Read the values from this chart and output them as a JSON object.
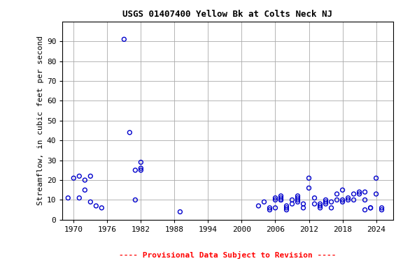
{
  "title": "USGS 01407400 Yellow Bk at Colts Neck NJ",
  "ylabel": "Streamflow, in cubic feet per second",
  "xlabel_note": "---- Provisional Data Subject to Revision ----",
  "xlim": [
    1968,
    2027
  ],
  "ylim": [
    0,
    100
  ],
  "yticks": [
    0,
    10,
    20,
    30,
    40,
    50,
    60,
    70,
    80,
    90
  ],
  "xticks": [
    1970,
    1976,
    1982,
    1988,
    1994,
    2000,
    2006,
    2012,
    2018,
    2024
  ],
  "scatter_color": "#0000CC",
  "background_color": "#ffffff",
  "grid_color": "#aaaaaa",
  "x": [
    1969,
    1970,
    1971,
    1971,
    1972,
    1972,
    1973,
    1973,
    1974,
    1975,
    1979,
    1980,
    1981,
    1981,
    1982,
    1982,
    1982,
    1989,
    2003,
    2004,
    2005,
    2005,
    2006,
    2006,
    2006,
    2007,
    2007,
    2007,
    2007,
    2008,
    2008,
    2008,
    2009,
    2009,
    2010,
    2010,
    2010,
    2010,
    2011,
    2011,
    2012,
    2012,
    2013,
    2013,
    2014,
    2014,
    2014,
    2015,
    2015,
    2015,
    2016,
    2016,
    2017,
    2017,
    2018,
    2018,
    2018,
    2019,
    2019,
    2020,
    2020,
    2021,
    2021,
    2022,
    2022,
    2022,
    2023,
    2023,
    2024,
    2024,
    2025,
    2025
  ],
  "y": [
    11,
    21,
    11,
    22,
    15,
    20,
    9,
    22,
    7,
    6,
    91,
    44,
    10,
    25,
    29,
    25,
    26,
    4,
    7,
    9,
    6,
    5,
    10,
    11,
    6,
    10,
    11,
    10,
    12,
    6,
    5,
    7,
    8,
    10,
    11,
    10,
    9,
    12,
    6,
    8,
    21,
    16,
    11,
    8,
    8,
    7,
    6,
    9,
    10,
    8,
    9,
    6,
    13,
    10,
    15,
    10,
    9,
    11,
    10,
    10,
    13,
    14,
    13,
    10,
    14,
    5,
    6,
    6,
    21,
    13,
    5,
    6
  ],
  "title_fontsize": 9,
  "tick_fontsize": 8,
  "ylabel_fontsize": 8,
  "note_fontsize": 8,
  "marker_size": 18,
  "marker_linewidth": 1.0
}
